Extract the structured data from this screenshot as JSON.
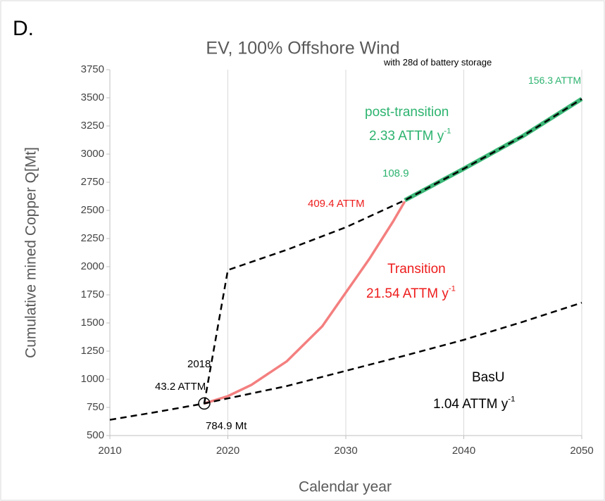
{
  "chart_data": {
    "type": "line",
    "title": "EV, 100% Offshore Wind",
    "x_label": "Calendar year",
    "y_label": "Cumulative mined Copper Q[Mt]",
    "xlim": [
      2010,
      2050
    ],
    "xticks": [
      2010,
      2020,
      2030,
      2040,
      2050
    ],
    "ylim": [
      500,
      3750
    ],
    "yticks": [
      500,
      750,
      1000,
      1250,
      1500,
      1750,
      2000,
      2250,
      2500,
      2750,
      3000,
      3250,
      3500,
      3750
    ],
    "grid": "x",
    "series": [
      {
        "color": "#3cb878",
        "style": "solid",
        "width": 6,
        "x": [
          2035,
          2040,
          2045,
          2050
        ],
        "values": [
          2590,
          2870,
          3160,
          3490
        ]
      },
      {
        "color": "#f47f7f",
        "style": "solid",
        "width": 3.5,
        "x": [
          2018,
          2020,
          2022,
          2025,
          2028,
          2030,
          2032,
          2034,
          2035
        ],
        "values": [
          785,
          850,
          950,
          1160,
          1470,
          1770,
          2070,
          2400,
          2580
        ]
      },
      {
        "color": "#000000",
        "style": "dashed",
        "width": 2.5,
        "x": [
          2010,
          2014,
          2018,
          2020,
          2025,
          2030,
          2035,
          2040,
          2045,
          2050
        ],
        "values": [
          640,
          710,
          785,
          830,
          940,
          1075,
          1210,
          1350,
          1510,
          1680
        ]
      },
      {
        "color": "#000000",
        "style": "dashed",
        "width": 2.5,
        "x": [
          2018,
          2020,
          2025,
          2030,
          2035,
          2040,
          2045,
          2050
        ],
        "values": [
          785,
          1970,
          2150,
          2350,
          2590,
          2870,
          3160,
          3490
        ]
      }
    ],
    "marker": {
      "x": 2018,
      "y": 784.9
    },
    "annotations": [
      {
        "text": "D.",
        "color": "#000000"
      },
      {
        "text": "with 28d of battery storage",
        "color": "#000000"
      },
      {
        "text": "156.3 ATTM",
        "color": "#2db36f"
      },
      {
        "text": "post-transition",
        "color": "#2db36f"
      },
      {
        "text": "2.33 ATTM y",
        "sup": "-1",
        "color": "#2db36f"
      },
      {
        "text": "108.9",
        "color": "#2db36f"
      },
      {
        "text": "409.4 ATTM",
        "color": "#ee1c1c"
      },
      {
        "text": "Transition",
        "color": "#ee1c1c"
      },
      {
        "text": "21.54 ATTM y",
        "sup": "-1",
        "color": "#ee1c1c"
      },
      {
        "text": "2018",
        "color": "#000000"
      },
      {
        "text": "43.2 ATTM",
        "color": "#000000"
      },
      {
        "text": "784.9 Mt",
        "color": "#000000"
      },
      {
        "text": "BasU",
        "color": "#000000"
      },
      {
        "text": "1.04 ATTM y",
        "sup": "-1",
        "color": "#000000"
      }
    ]
  }
}
